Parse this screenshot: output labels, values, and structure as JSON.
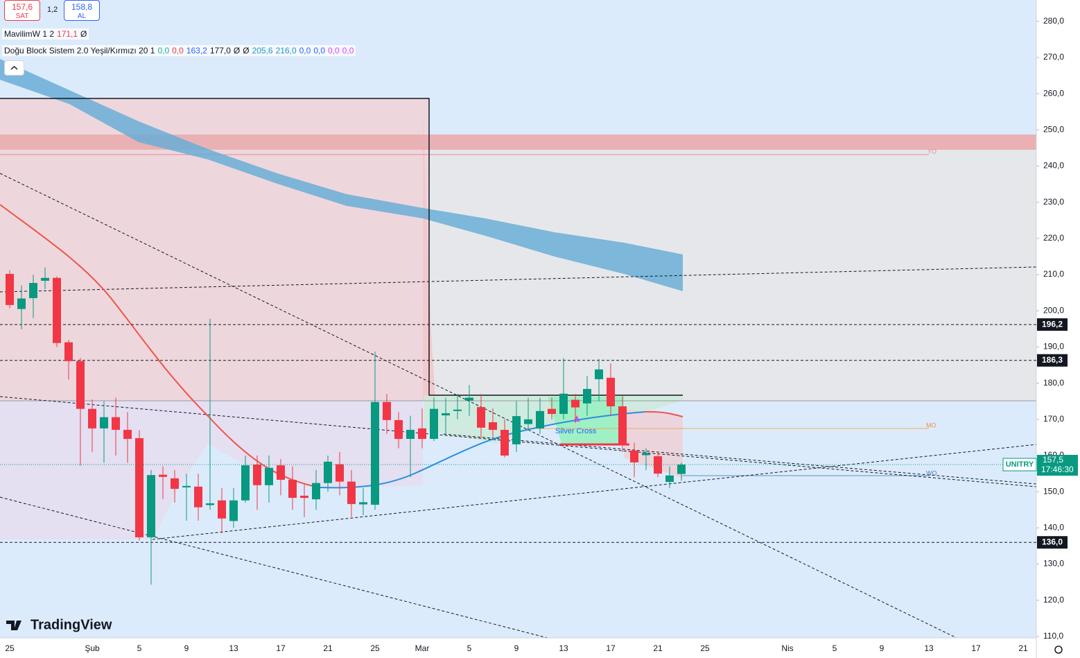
{
  "header": {
    "sell_price": "157,6",
    "sell_label": "SAT",
    "spread": "1,2",
    "buy_price": "158,8",
    "buy_label": "AL"
  },
  "indicators": [
    {
      "name": "MavilimW 1 2",
      "values": [
        "171,1",
        "Ø"
      ],
      "colors": [
        "#f23645",
        "#131722"
      ]
    },
    {
      "name": "Doğu Block Sistem 2.0 Yeşil/Kırmızı 20 1",
      "values": [
        "0,0",
        "0,0",
        "163,2",
        "177,0",
        "Ø",
        "Ø",
        "205,6",
        "216,0",
        "0,0",
        "0,0",
        "0,0",
        "0,0"
      ],
      "colors": [
        "#22ab94",
        "#f23645",
        "#2962ff",
        "#131722",
        "#131722",
        "#131722",
        "#2196c8",
        "#2196c8",
        "#2962ff",
        "#2962ff",
        "#e040fb",
        "#e040fb"
      ]
    }
  ],
  "watermark": "TradingView",
  "chart_data": {
    "type": "candlestick",
    "symbol": "UNITRY",
    "price_label": "157,5",
    "countdown": "17:46:30",
    "current_price": 157.5,
    "up_color": "#089981",
    "down_color": "#f23645",
    "ylim": [
      109.6,
      285.9
    ],
    "yticks": [
      {
        "value": 110,
        "label": "110,0"
      },
      {
        "value": 120,
        "label": "120,0"
      },
      {
        "value": 130,
        "label": "130,0"
      },
      {
        "value": 140,
        "label": "140,0"
      },
      {
        "value": 150,
        "label": "150,0"
      },
      {
        "value": 160,
        "label": "160,0"
      },
      {
        "value": 170,
        "label": "170,0"
      },
      {
        "value": 180,
        "label": "180,0"
      },
      {
        "value": 190,
        "label": "190,0"
      },
      {
        "value": 200,
        "label": "200,0"
      },
      {
        "value": 210,
        "label": "210,0"
      },
      {
        "value": 220,
        "label": "220,0"
      },
      {
        "value": 230,
        "label": "230,0"
      },
      {
        "value": 240,
        "label": "240,0"
      },
      {
        "value": 250,
        "label": "250,0"
      },
      {
        "value": 260,
        "label": "260,0"
      },
      {
        "value": 270,
        "label": "270,0"
      },
      {
        "value": 280,
        "label": "280,0"
      }
    ],
    "levels": [
      {
        "value": 196.2,
        "label": "196,2"
      },
      {
        "value": 186.3,
        "label": "186,3"
      },
      {
        "value": 136.0,
        "label": "136,0"
      }
    ],
    "annotations": [
      "YO",
      "MO",
      "WO",
      "Silver Cross"
    ],
    "categories": [
      "25",
      null,
      null,
      null,
      null,
      null,
      null,
      "Şub",
      null,
      null,
      null,
      "5",
      null,
      null,
      null,
      "9",
      null,
      null,
      null,
      "13",
      null,
      null,
      null,
      "17",
      null,
      null,
      null,
      "21",
      null,
      null,
      null,
      "25",
      null,
      null,
      null,
      "Mar",
      null,
      null,
      null,
      "5",
      null,
      null,
      null,
      "9",
      null,
      null,
      null,
      "13",
      null,
      null,
      null,
      "17",
      null,
      null,
      null,
      "21",
      null,
      null,
      null,
      "25",
      null,
      null,
      null,
      null,
      null,
      null,
      "Nis",
      null,
      null,
      null,
      "5",
      null,
      null,
      null,
      "9",
      null,
      null,
      null,
      "13",
      null,
      null,
      null,
      "17",
      null,
      null,
      null,
      "21",
      null
    ],
    "open": [
      210.2,
      200.5,
      203.5,
      208.3,
      209.1,
      191.3,
      186.1,
      172.9,
      167.5,
      170.6,
      167.1,
      164.8,
      137.4,
      154.7,
      153.7,
      151.2,
      151.4,
      146.3,
      147.6,
      141.9,
      147.6,
      157.5,
      151.8,
      157.3,
      153.3,
      148.9,
      147.9,
      152.4,
      157.6,
      152.8,
      146.5,
      146.4,
      174.8,
      169.8,
      164.6,
      167.5,
      164.6,
      171.1,
      172.3,
      175.2,
      173.4,
      169.2,
      167.1,
      163.1,
      168.7,
      167.5,
      172.9,
      171.5,
      175.4,
      174.4,
      181.1,
      181.5,
      173.6,
      161.4,
      160.1,
      159.8,
      152.7,
      154.9,
      null,
      null,
      null,
      null,
      null,
      null,
      null,
      null,
      null,
      null,
      null,
      null,
      null,
      null,
      null,
      null,
      null,
      null,
      null,
      null,
      null,
      null,
      null,
      null,
      null,
      null,
      null,
      null,
      null,
      null
    ],
    "high": [
      211.2,
      207.0,
      210.0,
      212.0,
      209.5,
      192.0,
      187.0,
      175.5,
      175.0,
      176.0,
      172.0,
      167.0,
      156.0,
      157.0,
      156.0,
      155.0,
      155.0,
      197.8,
      151.0,
      151.0,
      160.0,
      160.0,
      160.0,
      159.0,
      157.0,
      152.0,
      156.0,
      160.0,
      161.0,
      156.0,
      151.0,
      188.7,
      177.0,
      172.0,
      171.0,
      173.0,
      176.0,
      176.0,
      177.0,
      179.5,
      177.0,
      173.0,
      170.0,
      175.0,
      176.0,
      176.0,
      176.0,
      186.9,
      177.0,
      182.0,
      186.7,
      185.5,
      176.5,
      163.6,
      162.0,
      161.0,
      157.0,
      158.0,
      null,
      null,
      null,
      null,
      null,
      null,
      null,
      null,
      null,
      null,
      null,
      null,
      null,
      null,
      null,
      null,
      null,
      null,
      null,
      null,
      null,
      null,
      null,
      null,
      null,
      null,
      null,
      null,
      null,
      null
    ],
    "low": [
      200.7,
      194.9,
      198.0,
      206.0,
      190.0,
      181.0,
      157.2,
      161.0,
      158.0,
      160.0,
      158.0,
      136.5,
      124.3,
      148.0,
      147.0,
      142.0,
      142.0,
      145.0,
      138.5,
      140.0,
      147.0,
      145.0,
      147.0,
      149.0,
      145.0,
      143.0,
      145.0,
      150.0,
      149.0,
      143.0,
      143.5,
      145.0,
      166.0,
      162.0,
      154.0,
      162.0,
      164.0,
      166.0,
      170.0,
      171.0,
      165.0,
      165.0,
      159.5,
      161.0,
      167.0,
      166.0,
      170.0,
      170.0,
      169.0,
      171.0,
      175.0,
      171.0,
      161.0,
      154.0,
      156.0,
      154.0,
      151.0,
      153.0,
      null,
      null,
      null,
      null,
      null,
      null,
      null,
      null,
      null,
      null,
      null,
      null,
      null,
      null,
      null,
      null,
      null,
      null,
      null,
      null,
      null,
      null,
      null,
      null,
      null,
      null,
      null,
      null,
      null,
      null
    ],
    "close": [
      201.6,
      203.4,
      207.7,
      209.1,
      191.1,
      186.1,
      172.9,
      167.5,
      170.6,
      167.1,
      164.6,
      137.4,
      154.6,
      154.1,
      150.8,
      151.6,
      145.7,
      146.8,
      142.6,
      147.6,
      157.3,
      151.8,
      156.6,
      153.3,
      148.3,
      148.3,
      152.4,
      158.3,
      152.8,
      146.6,
      147.1,
      174.8,
      169.8,
      164.6,
      167.1,
      164.6,
      172.9,
      171.7,
      172.7,
      176.0,
      167.7,
      167.1,
      160.0,
      170.9,
      170.0,
      172.3,
      171.5,
      177.1,
      173.3,
      178.4,
      183.8,
      173.6,
      163.1,
      158.1,
      160.7,
      155.0,
      154.5,
      157.5,
      null,
      null,
      null,
      null,
      null,
      null,
      null,
      null,
      null,
      null,
      null,
      null,
      null,
      null,
      null,
      null,
      null,
      null,
      null,
      null,
      null,
      null,
      null,
      null,
      null,
      null,
      null,
      null,
      null,
      null
    ]
  }
}
